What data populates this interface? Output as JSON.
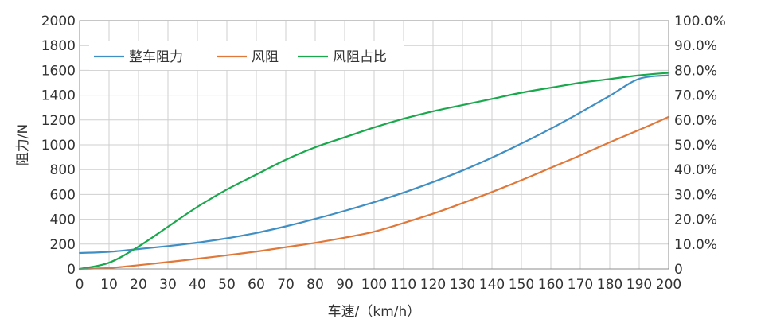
{
  "chart_data": {
    "type": "line",
    "xlabel": "车速/（km/h）",
    "ylabel": "阻力/N",
    "xlim": [
      0,
      200
    ],
    "ylim": [
      0,
      2000
    ],
    "y2lim": [
      0,
      100
    ],
    "x_ticks": [
      "0",
      "10",
      "20",
      "30",
      "40",
      "50",
      "60",
      "70",
      "80",
      "90",
      "100",
      "110",
      "120",
      "130",
      "140",
      "150",
      "160",
      "170",
      "180",
      "190",
      "200"
    ],
    "y_ticks": [
      "0",
      "200",
      "400",
      "600",
      "800",
      "1000",
      "1200",
      "1400",
      "1600",
      "1800",
      "2000"
    ],
    "y2_ticks": [
      "0",
      "10.0%",
      "20.0%",
      "30.0%",
      "40.0%",
      "50.0%",
      "60.0%",
      "70.0%",
      "80.0%",
      "90.0%",
      "100.0%"
    ],
    "grid": true,
    "legend_position": "top-left",
    "x": [
      0,
      10,
      20,
      30,
      40,
      50,
      60,
      70,
      80,
      90,
      100,
      110,
      120,
      130,
      140,
      150,
      160,
      170,
      180,
      190,
      200
    ],
    "series": [
      {
        "name": "整车阻力",
        "axis": "left",
        "color": "#3f8fc4",
        "values": [
          128,
          138,
          160,
          184,
          212,
          247,
          290,
          343,
          403,
          468,
          538,
          615,
          700,
          793,
          897,
          1010,
          1130,
          1260,
          1395,
          1532,
          1560
        ]
      },
      {
        "name": "风阻",
        "axis": "left",
        "color": "#e0783a",
        "values": [
          0,
          8,
          30,
          55,
          82,
          110,
          140,
          175,
          210,
          252,
          300,
          370,
          445,
          530,
          620,
          715,
          815,
          915,
          1020,
          1120,
          1225
        ]
      },
      {
        "name": "风阻占比",
        "axis": "right",
        "color": "#1aa84d",
        "values": [
          0,
          2.5,
          9,
          17,
          25,
          32,
          38,
          44,
          49,
          53,
          57,
          60.5,
          63.5,
          66,
          68.5,
          71,
          73,
          75,
          76.5,
          78,
          79
        ]
      }
    ]
  }
}
